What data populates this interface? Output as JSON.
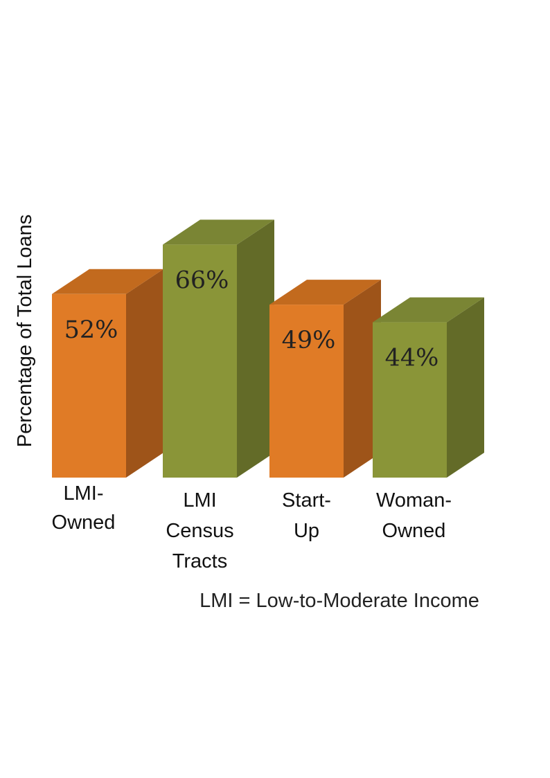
{
  "chart_data": {
    "type": "bar",
    "style": "3d",
    "categories": [
      "LMI-Owned",
      "LMI Census Tracts",
      "Start-Up",
      "Woman-Owned"
    ],
    "category_label_lines": [
      [
        "LMI-",
        "Owned"
      ],
      [
        "LMI",
        "Census",
        "Tracts"
      ],
      [
        "Start-",
        "Up"
      ],
      [
        "Woman-",
        "Owned"
      ]
    ],
    "values": [
      52,
      66,
      49,
      44
    ],
    "value_labels": [
      "52%",
      "66%",
      "49%",
      "44%"
    ],
    "ylabel": "Percentage of Total Loans",
    "unit": "%",
    "grid": false,
    "legend": "none",
    "colors": [
      {
        "front": "#E07B26",
        "side": "#9E5419",
        "top": "#C26A1E"
      },
      {
        "front": "#8A9538",
        "side": "#636B28",
        "top": "#7A8534"
      },
      {
        "front": "#E07B26",
        "side": "#9E5419",
        "top": "#C26A1E"
      },
      {
        "front": "#8A9538",
        "side": "#636B28",
        "top": "#7A8534"
      }
    ]
  },
  "footnote": "LMI = Low-to-Moderate Income"
}
